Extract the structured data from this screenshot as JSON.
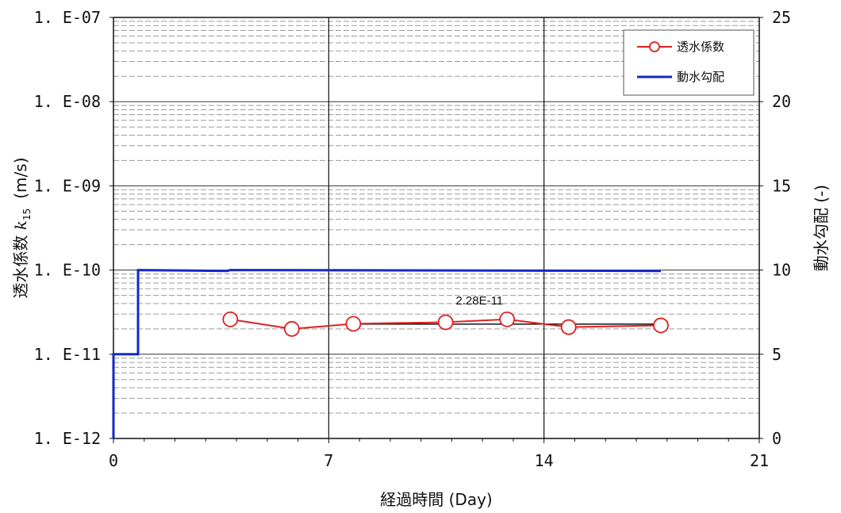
{
  "chart_data": {
    "type": "line",
    "xlabel": "経過時間 (Day)",
    "ylabel_left": "透水係数",
    "ylabel_left_symbol": "k",
    "ylabel_left_subscript": "15",
    "ylabel_left_unit": "(m/s)",
    "ylabel_right": "動水勾配 (-)",
    "xlim": [
      0,
      21
    ],
    "x_ticks": [
      0,
      7,
      14,
      21
    ],
    "x_tick_labels": [
      "0",
      "7",
      "14",
      "21"
    ],
    "ylim_left": [
      1e-12,
      1e-07
    ],
    "y_scale_left": "log",
    "y_ticks_left": [
      1e-12,
      1e-11,
      1e-10,
      1e-09,
      1e-08,
      1e-07
    ],
    "y_tick_labels_left": [
      "1. E-12",
      "1. E-11",
      "1. E-10",
      "1. E-09",
      "1. E-08",
      "1. E-07"
    ],
    "ylim_right": [
      0,
      25
    ],
    "y_ticks_right": [
      0,
      5,
      10,
      15,
      20,
      25
    ],
    "y_tick_labels_right": [
      "0",
      "5",
      "10",
      "15",
      "20",
      "25"
    ],
    "vertical_lines_x": [
      7,
      14
    ],
    "grid": true,
    "legend_position": "top-right",
    "series": [
      {
        "name": "透水係数",
        "axis": "left",
        "color": "#e02020",
        "marker": "circle",
        "x": [
          3.8,
          5.8,
          7.8,
          10.8,
          12.8,
          14.8,
          17.8
        ],
        "y": [
          2.6e-11,
          2e-11,
          2.3e-11,
          2.4e-11,
          2.6e-11,
          2.1e-11,
          2.2e-11
        ]
      },
      {
        "name": "動水勾配",
        "axis": "right",
        "color": "#1428c8",
        "marker": "none",
        "x": [
          0,
          0,
          0.8,
          0.8,
          3.7,
          3.8,
          17.8
        ],
        "y": [
          0,
          5,
          5,
          10,
          9.95,
          10,
          9.95
        ]
      }
    ],
    "mean_line": {
      "x": [
        7.8,
        17.8
      ],
      "y": 2.28e-11,
      "color": "#111111"
    },
    "annotations": [
      {
        "text": "2.28E-11",
        "x": 11.9,
        "y": 3.9e-11
      }
    ]
  }
}
